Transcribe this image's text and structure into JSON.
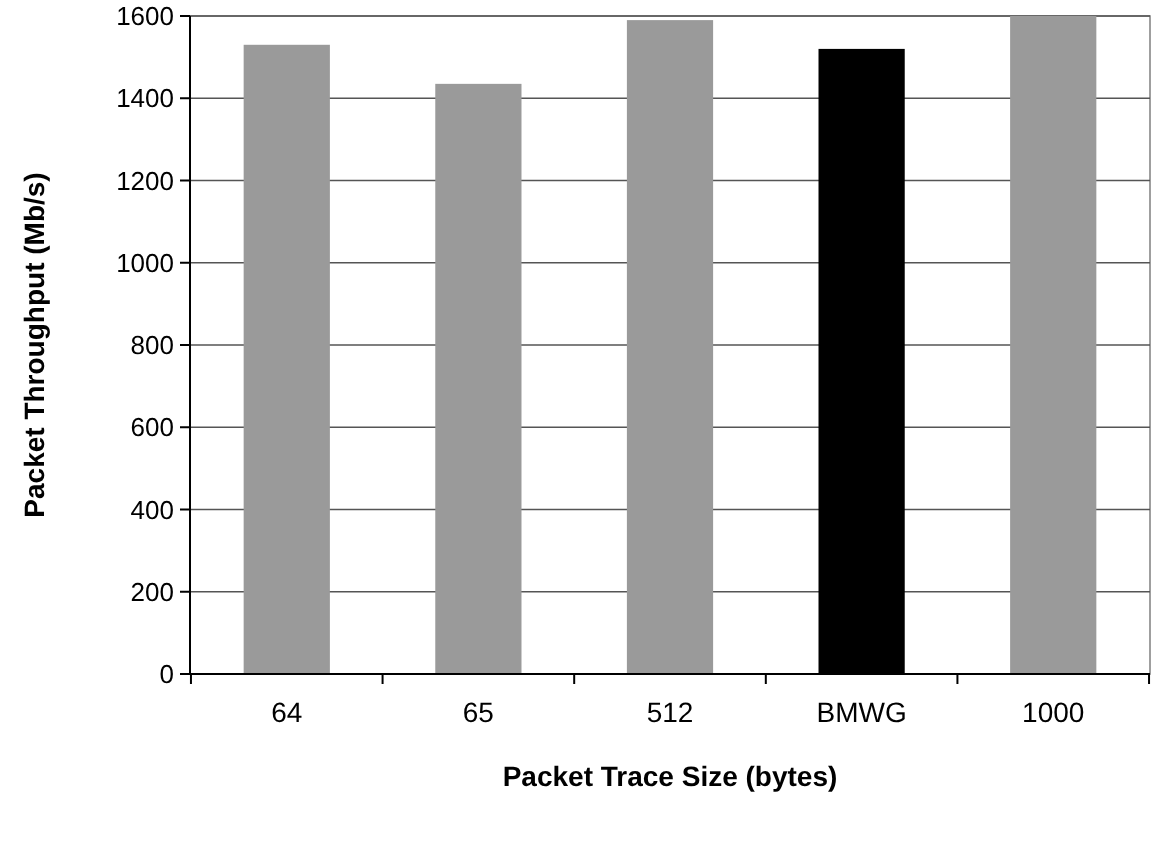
{
  "chart_data": {
    "type": "bar",
    "xlabel": "Packet Trace Size (bytes)",
    "ylabel": "Packet Throughput (Mb/s)",
    "categories": [
      "64",
      "65",
      "512",
      "BMWG",
      "1000"
    ],
    "values": [
      1530,
      1435,
      1590,
      1520,
      1600
    ],
    "colors": [
      "#9a9a9a",
      "#9a9a9a",
      "#9a9a9a",
      "#000000",
      "#9a9a9a"
    ],
    "ylim": [
      0,
      1600
    ],
    "yticks": [
      0,
      200,
      400,
      600,
      800,
      1000,
      1200,
      1400,
      1600
    ],
    "grid": "y"
  }
}
